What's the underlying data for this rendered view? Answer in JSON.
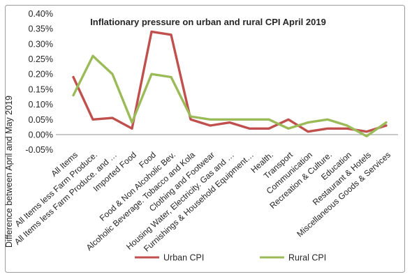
{
  "chart_data": {
    "type": "line",
    "title": "Inflationary pressure on urban and rural CPI April 2019",
    "ylabel": "Difference  between April and May 2019",
    "xlabel": "",
    "ylim": [
      -0.05,
      0.4
    ],
    "ytick_step": 0.05,
    "ytick_labels": [
      "0.40%",
      "0.35%",
      "0.30%",
      "0.25%",
      "0.20%",
      "0.15%",
      "0.10%",
      "0.05%",
      "0.00%",
      "-0.05%"
    ],
    "grid": false,
    "legend_position": "bottom",
    "categories": [
      "All Items",
      "All Items less Farm Produce.",
      "All Items less Farm Produce. and …",
      "Imported Food",
      "Food",
      "Food &  Non Alcoholic Bev.",
      "Alcoholic Beverage. Tobacco and Kola",
      "Clothing and Footwear",
      "Housing Water, Electricity. Gas and …",
      "Furnishings & Household Equipment…",
      "Health.",
      "Transport",
      "Communication",
      "Recreation & Culture.",
      "Education",
      "Restaurant &  Hotels",
      "Miscellaneous Goods & Services"
    ],
    "series": [
      {
        "name": "Urban CPI",
        "color": "#C0504D",
        "values": [
          0.19,
          0.05,
          0.055,
          0.02,
          0.34,
          0.33,
          0.05,
          0.03,
          0.04,
          0.02,
          0.02,
          0.05,
          0.01,
          0.02,
          0.02,
          0.01,
          0.03
        ]
      },
      {
        "name": "Rural CPI",
        "color": "#9BBB59",
        "values": [
          0.13,
          0.26,
          0.2,
          0.04,
          0.2,
          0.19,
          0.06,
          0.05,
          0.05,
          0.05,
          0.05,
          0.02,
          0.04,
          0.05,
          0.03,
          -0.005,
          0.04
        ]
      }
    ],
    "colors": {
      "title": "#1F497D",
      "axis_line": "#A6A6A6",
      "frame_border": "#9C9C9C",
      "text": "#262626"
    }
  }
}
